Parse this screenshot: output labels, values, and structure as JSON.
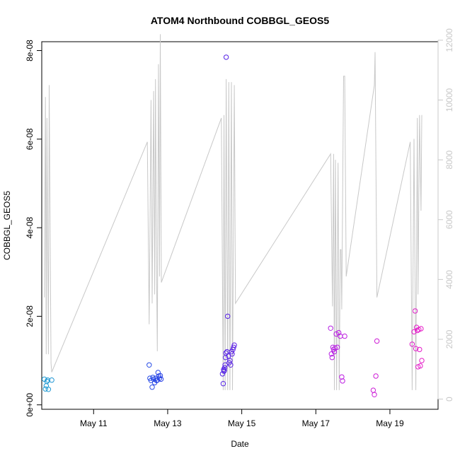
{
  "chart_data": {
    "type": "scatter",
    "title": "ATOM4 Northbound COBBGL_GEOS5",
    "xlabel": "Date",
    "ylabel": "COBBGL_GEOS5",
    "y2label": "",
    "xlim": [
      9.6,
      20.3
    ],
    "ylim": [
      -1e-09,
      8.2e-08
    ],
    "y2lim": [
      -340,
      11950
    ],
    "x_ticks": [
      {
        "v": 11,
        "label": "May 11"
      },
      {
        "v": 13,
        "label": "May 13"
      },
      {
        "v": 15,
        "label": "May 15"
      },
      {
        "v": 17,
        "label": "May 17"
      },
      {
        "v": 19,
        "label": "May 19"
      }
    ],
    "y_ticks": [
      {
        "v": 0,
        "label": "0e+00"
      },
      {
        "v": 2e-08,
        "label": "2e-08"
      },
      {
        "v": 4e-08,
        "label": "4e-08"
      },
      {
        "v": 6e-08,
        "label": "6e-08"
      },
      {
        "v": 8e-08,
        "label": "8e-08"
      }
    ],
    "y2_ticks": [
      {
        "v": 0,
        "label": "0"
      },
      {
        "v": 2000,
        "label": "2000"
      },
      {
        "v": 4000,
        "label": "4000"
      },
      {
        "v": 6000,
        "label": "6000"
      },
      {
        "v": 8000,
        "label": "8000"
      },
      {
        "v": 10000,
        "label": "10000"
      },
      {
        "v": 12000,
        "label": "12000"
      }
    ],
    "grid": false,
    "line_color": "#c8c8c8",
    "gradient_colors": [
      "#1e9bd2",
      "#1e50e6",
      "#5a1ee6",
      "#b41ee6",
      "#e61ec8"
    ],
    "series": [
      {
        "type": "scatter",
        "points": [
          [
            9.67,
            5.8e-09
          ],
          [
            9.7,
            3.6e-09
          ],
          [
            9.72,
            4.3e-09
          ],
          [
            9.74,
            5.3e-09
          ],
          [
            9.76,
            5.6e-09
          ],
          [
            9.78,
            3.5e-09
          ],
          [
            9.87,
            5.6e-09
          ],
          [
            12.5,
            9e-09
          ],
          [
            12.52,
            6e-09
          ],
          [
            12.55,
            5.5e-09
          ],
          [
            12.58,
            4e-09
          ],
          [
            12.6,
            6.2e-09
          ],
          [
            12.62,
            5.8e-09
          ],
          [
            12.65,
            5e-09
          ],
          [
            12.68,
            6e-09
          ],
          [
            12.7,
            5.5e-09
          ],
          [
            12.72,
            5.6e-09
          ],
          [
            12.74,
            7.3e-09
          ],
          [
            12.76,
            6.5e-09
          ],
          [
            12.78,
            6e-09
          ],
          [
            12.8,
            6.6e-09
          ],
          [
            12.82,
            5.8e-09
          ],
          [
            14.48,
            7e-09
          ],
          [
            14.5,
            4.8e-09
          ],
          [
            14.51,
            8e-09
          ],
          [
            14.52,
            7.6e-09
          ],
          [
            14.53,
            7.8e-09
          ],
          [
            14.54,
            8.4e-09
          ],
          [
            14.55,
            9e-09
          ],
          [
            14.56,
            1.07e-08
          ],
          [
            14.57,
            1.17e-08
          ],
          [
            14.58,
            7.85e-08
          ],
          [
            14.6,
            1.2e-08
          ],
          [
            14.62,
            2e-08
          ],
          [
            14.64,
            1.1e-08
          ],
          [
            14.66,
            9.5e-09
          ],
          [
            14.68,
            1e-08
          ],
          [
            14.7,
            9e-09
          ],
          [
            14.72,
            1.2e-08
          ],
          [
            14.74,
            1.15e-08
          ],
          [
            14.76,
            1.25e-08
          ],
          [
            14.78,
            1.3e-08
          ],
          [
            14.8,
            1.35e-08
          ],
          [
            17.4,
            1.73e-08
          ],
          [
            17.42,
            1.15e-08
          ],
          [
            17.44,
            1.07e-08
          ],
          [
            17.46,
            1.3e-08
          ],
          [
            17.48,
            1.25e-08
          ],
          [
            17.5,
            1.2e-08
          ],
          [
            17.52,
            1.28e-08
          ],
          [
            17.55,
            1.6e-08
          ],
          [
            17.58,
            1.3e-08
          ],
          [
            17.62,
            1.63e-08
          ],
          [
            17.66,
            1.55e-08
          ],
          [
            17.7,
            6.3e-09
          ],
          [
            17.72,
            5.4e-09
          ],
          [
            17.78,
            1.55e-08
          ],
          [
            18.55,
            3.3e-09
          ],
          [
            18.58,
            2.3e-09
          ],
          [
            18.62,
            6.5e-09
          ],
          [
            18.65,
            1.44e-08
          ],
          [
            19.6,
            1.37e-08
          ],
          [
            19.65,
            1.65e-08
          ],
          [
            19.68,
            2.12e-08
          ],
          [
            19.7,
            1.27e-08
          ],
          [
            19.72,
            1.75e-08
          ],
          [
            19.74,
            1.68e-08
          ],
          [
            19.76,
            8.6e-09
          ],
          [
            19.78,
            1.7e-08
          ],
          [
            19.8,
            1.25e-08
          ],
          [
            19.82,
            8.8e-09
          ],
          [
            19.84,
            1.72e-08
          ],
          [
            19.86,
            1e-08
          ]
        ]
      },
      {
        "type": "line",
        "axis": "right",
        "points": [
          [
            9.67,
            3400
          ],
          [
            9.7,
            10100
          ],
          [
            9.72,
            1500
          ],
          [
            9.74,
            9400
          ],
          [
            9.78,
            1500
          ],
          [
            9.8,
            10500
          ],
          [
            9.85,
            1200
          ],
          [
            9.87,
            900
          ],
          [
            12.45,
            8600
          ],
          [
            12.5,
            2500
          ],
          [
            12.55,
            10000
          ],
          [
            12.58,
            3200
          ],
          [
            12.62,
            10300
          ],
          [
            12.65,
            3500
          ],
          [
            12.67,
            10700
          ],
          [
            12.7,
            4300
          ],
          [
            12.72,
            1600
          ],
          [
            12.75,
            11200
          ],
          [
            12.78,
            4100
          ],
          [
            12.8,
            12200
          ],
          [
            12.83,
            3900
          ],
          [
            14.45,
            9400
          ],
          [
            14.5,
            300
          ],
          [
            14.52,
            9500
          ],
          [
            14.55,
            300
          ],
          [
            14.58,
            10700
          ],
          [
            14.62,
            300
          ],
          [
            14.65,
            10600
          ],
          [
            14.68,
            300
          ],
          [
            14.72,
            10600
          ],
          [
            14.75,
            300
          ],
          [
            14.8,
            10500
          ],
          [
            14.83,
            3200
          ],
          [
            17.4,
            8200
          ],
          [
            17.45,
            3100
          ],
          [
            17.48,
            8200
          ],
          [
            17.5,
            300
          ],
          [
            17.53,
            8000
          ],
          [
            17.56,
            300
          ],
          [
            17.6,
            7900
          ],
          [
            17.63,
            300
          ],
          [
            17.66,
            5000
          ],
          [
            17.68,
            5000
          ],
          [
            17.7,
            3000
          ],
          [
            17.75,
            10800
          ],
          [
            17.78,
            10800
          ],
          [
            17.82,
            4100
          ],
          [
            18.58,
            10500
          ],
          [
            18.6,
            11600
          ],
          [
            18.65,
            3400
          ],
          [
            19.55,
            8600
          ],
          [
            19.6,
            300
          ],
          [
            19.65,
            8700
          ],
          [
            19.7,
            300
          ],
          [
            19.74,
            9400
          ],
          [
            19.76,
            3500
          ],
          [
            19.8,
            9500
          ],
          [
            19.84,
            6300
          ],
          [
            19.86,
            9500
          ]
        ]
      }
    ]
  }
}
